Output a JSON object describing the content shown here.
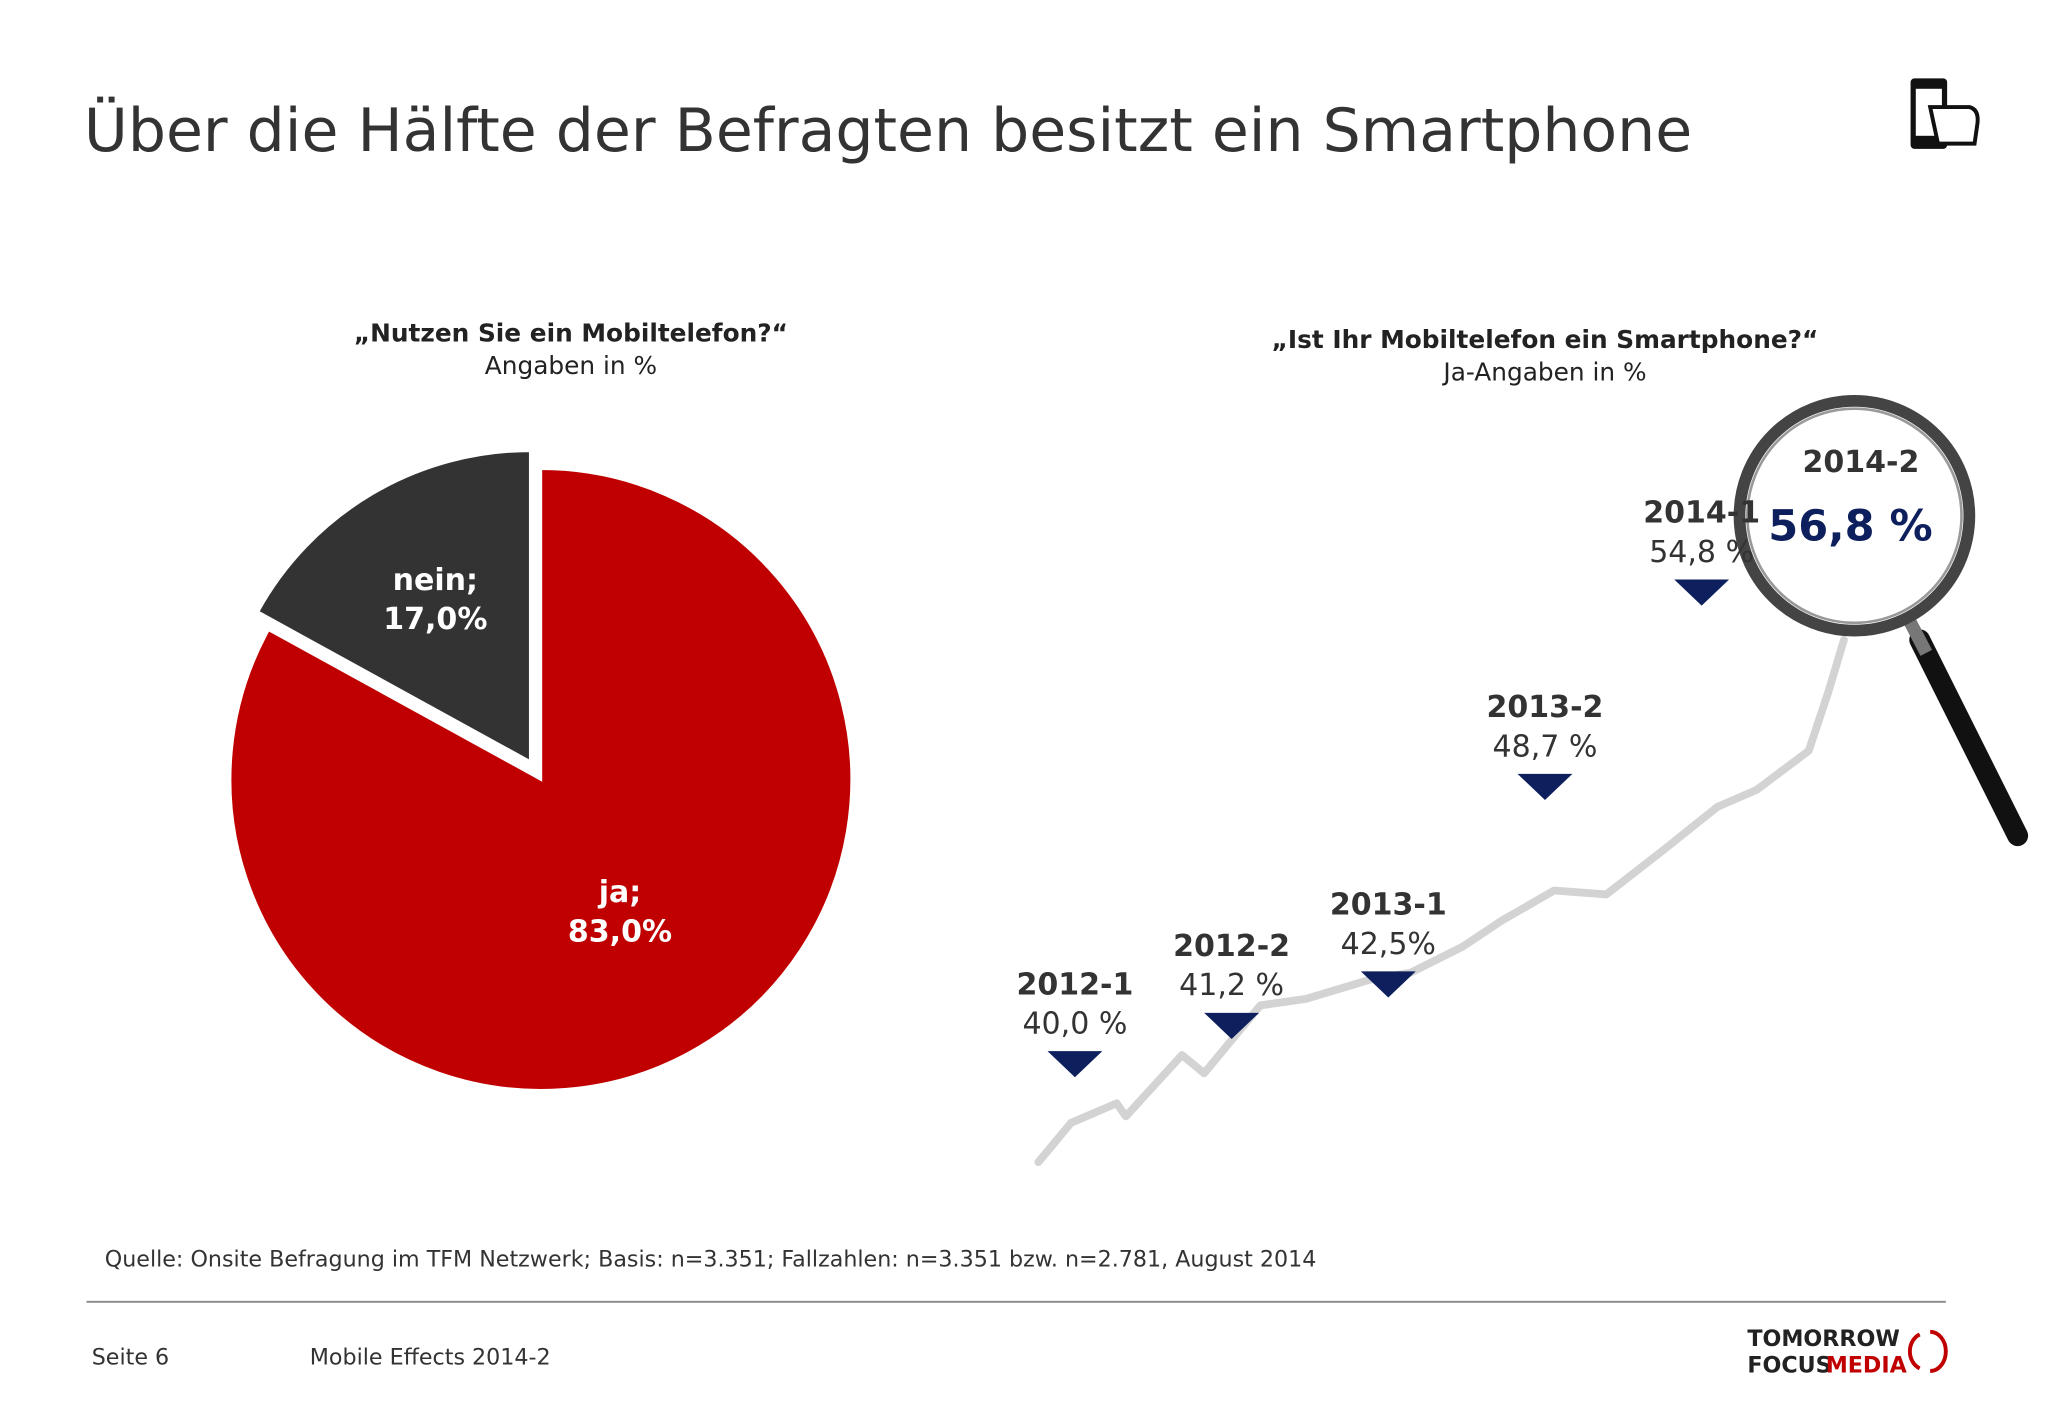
{
  "title": "Über die Hälfte der Befragten besitzt ein Smartphone",
  "source": "Quelle: Onsite Befragung im TFM Netzwerk; Basis: n=3.351; Fallzahlen: n=3.351 bzw. n=2.781, August 2014",
  "footer": {
    "page": "Seite 6",
    "report": "Mobile Effects 2014-2"
  },
  "logo": {
    "line1": "TOMORROW",
    "line2a": "FOCUS",
    "line2b": "MEDIA"
  },
  "chart_data": [
    {
      "type": "pie",
      "title": "„Nutzen Sie ein Mobiltelefon?“",
      "subtitle": "Angaben in %",
      "categories": [
        "ja;",
        "nein;"
      ],
      "values": [
        83,
        17
      ],
      "value_labels": [
        "83,0%",
        "17,0%"
      ],
      "colors": [
        "#c00000",
        "#333333"
      ]
    },
    {
      "type": "milestones",
      "title": "„Ist Ihr Mobiltelefon ein Smartphone?“",
      "subtitle": "Ja-Angaben in %",
      "categories": [
        "2012-1",
        "2012-2",
        "2013-1",
        "2013-2",
        "2014-1",
        "2014-2"
      ],
      "values": [
        40.0,
        41.2,
        42.5,
        48.7,
        54.8,
        56.8
      ],
      "value_labels": [
        "40,0 %",
        "41,2 %",
        "42,5%",
        "48,7 %",
        "54,8 %",
        "56,8 %"
      ],
      "color": "#0d1f5c"
    }
  ]
}
